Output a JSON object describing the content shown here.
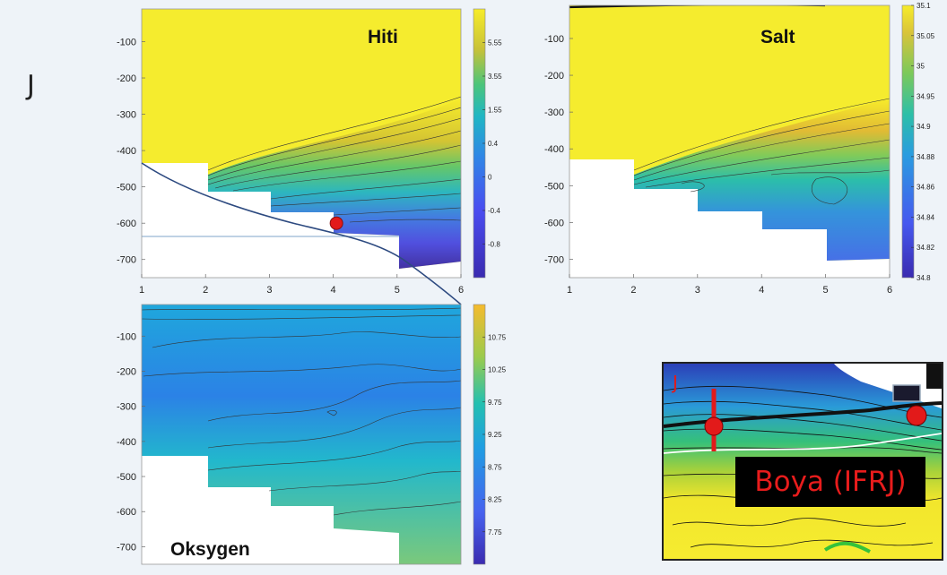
{
  "panel_label": "J",
  "chart_data": [
    {
      "type": "heatmap",
      "title": "Hiti",
      "x_ticks": [
        1,
        2,
        3,
        4,
        5,
        6
      ],
      "y_ticks": [
        -100,
        -200,
        -300,
        -400,
        -500,
        -600,
        -700
      ],
      "xlim": [
        1,
        6
      ],
      "ylim": [
        -750,
        -10
      ],
      "colorbar_ticks": [
        "5.55",
        "3.55",
        "1.55",
        "0.4",
        "0",
        "-0.4",
        "-0.8"
      ],
      "bottom_depths": [
        -420,
        -510,
        -555,
        -600,
        -630,
        -700
      ],
      "marker": {
        "x": 4.05,
        "y": -600
      }
    },
    {
      "type": "heatmap",
      "title": "Salt",
      "x_ticks": [
        1,
        2,
        3,
        4,
        5,
        6
      ],
      "y_ticks": [
        -100,
        -200,
        -300,
        -400,
        -500,
        -600,
        -700
      ],
      "xlim": [
        1,
        6
      ],
      "ylim": [
        -750,
        -10
      ],
      "colorbar_ticks": [
        "35.1",
        "35.05",
        "35",
        "34.95",
        "34.9",
        "34.88",
        "34.86",
        "34.84",
        "34.82",
        "34.8"
      ],
      "bottom_depths": [
        -420,
        -510,
        -570,
        -620,
        -705,
        -705
      ]
    },
    {
      "type": "heatmap",
      "title": "Oksygen",
      "y_ticks": [
        -100,
        -200,
        -300,
        -400,
        -500,
        -600,
        -700
      ],
      "ylim": [
        -750,
        -10
      ],
      "colorbar_ticks": [
        "10.75",
        "10.25",
        "9.75",
        "9.25",
        "8.75",
        "8.25",
        "7.75"
      ],
      "bottom_depths": [
        -420,
        -510,
        -555,
        -600,
        -630,
        -700
      ]
    }
  ],
  "inset": {
    "label": "Boya (IFRJ)",
    "corner_letter": "J"
  },
  "colors": {
    "yellow": "#f5ec2e",
    "marker": "#e21a1a",
    "section_line": "#2d4a80"
  }
}
